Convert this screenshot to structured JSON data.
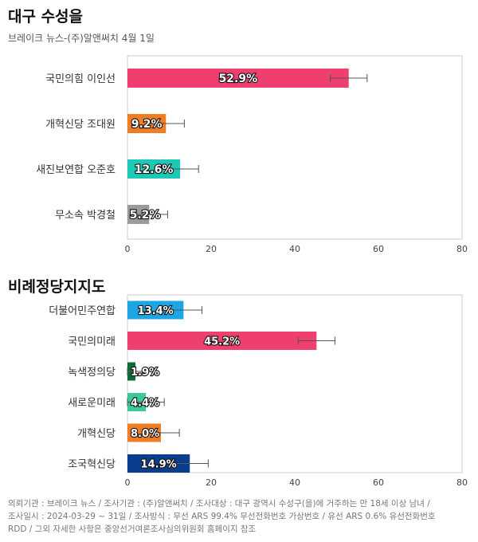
{
  "header": {
    "title": "대구 수성을",
    "subtitle": "브레이크 뉴스-(주)알앤써치 4월 1일"
  },
  "section2": {
    "title": "비례정당지지도"
  },
  "colors": {
    "axis_text": "#444444",
    "frame": "#cccccc",
    "error_bar": "#555555"
  },
  "chart_data": [
    {
      "type": "bar",
      "orientation": "horizontal",
      "categories": [
        "국민의힘 이인선",
        "개혁신당 조대원",
        "새진보연합 오준호",
        "무소속 박경철"
      ],
      "values": [
        52.9,
        9.2,
        12.6,
        5.2
      ],
      "labels": [
        "52.9%",
        "9.2%",
        "12.6%",
        "5.2%"
      ],
      "error": [
        4.4,
        4.4,
        4.4,
        4.4
      ],
      "colors": [
        "#ee3f6e",
        "#f07d24",
        "#1ec8b6",
        "#9b9b9b"
      ],
      "xlim": [
        0,
        80
      ],
      "xticks": [
        0,
        20,
        40,
        60,
        80
      ],
      "grid": false
    },
    {
      "type": "bar",
      "orientation": "horizontal",
      "categories": [
        "더불어민주연합",
        "국민의미래",
        "녹색정의당",
        "새로운미래",
        "개혁신당",
        "조국혁신당"
      ],
      "values": [
        13.4,
        45.2,
        1.9,
        4.4,
        8.0,
        14.9
      ],
      "labels": [
        "13.4%",
        "45.2%",
        "1.9%",
        "4.4%",
        "8.0%",
        "14.9%"
      ],
      "error": [
        4.4,
        4.4,
        4.4,
        4.4,
        4.4,
        4.4
      ],
      "colors": [
        "#1ca6e4",
        "#ee3f6e",
        "#0b6b35",
        "#3cc99b",
        "#f07d24",
        "#0a3d8c"
      ],
      "xlim": [
        0,
        80
      ],
      "xticks": [
        0,
        20,
        40,
        60,
        80
      ],
      "grid": false
    }
  ],
  "footer": {
    "line1": "의뢰기관 : 브레이크 뉴스 / 조사기관 : (주)알앤써치 / 조사대상 : 대구 광역시 수성구(을)에 거주하는 만 18세 이상 남녀 /",
    "line2": "조사일시 : 2024-03-29 ~ 31일 / 조사방식 : 무선 ARS 99.4% 무선전화번호 가상번호 / 유선 ARS 0.6% 유선전화번호",
    "line3": "RDD / 그외 자세한 사항은 중앙선거여론조사심의위원회 홈페이지 참조"
  }
}
